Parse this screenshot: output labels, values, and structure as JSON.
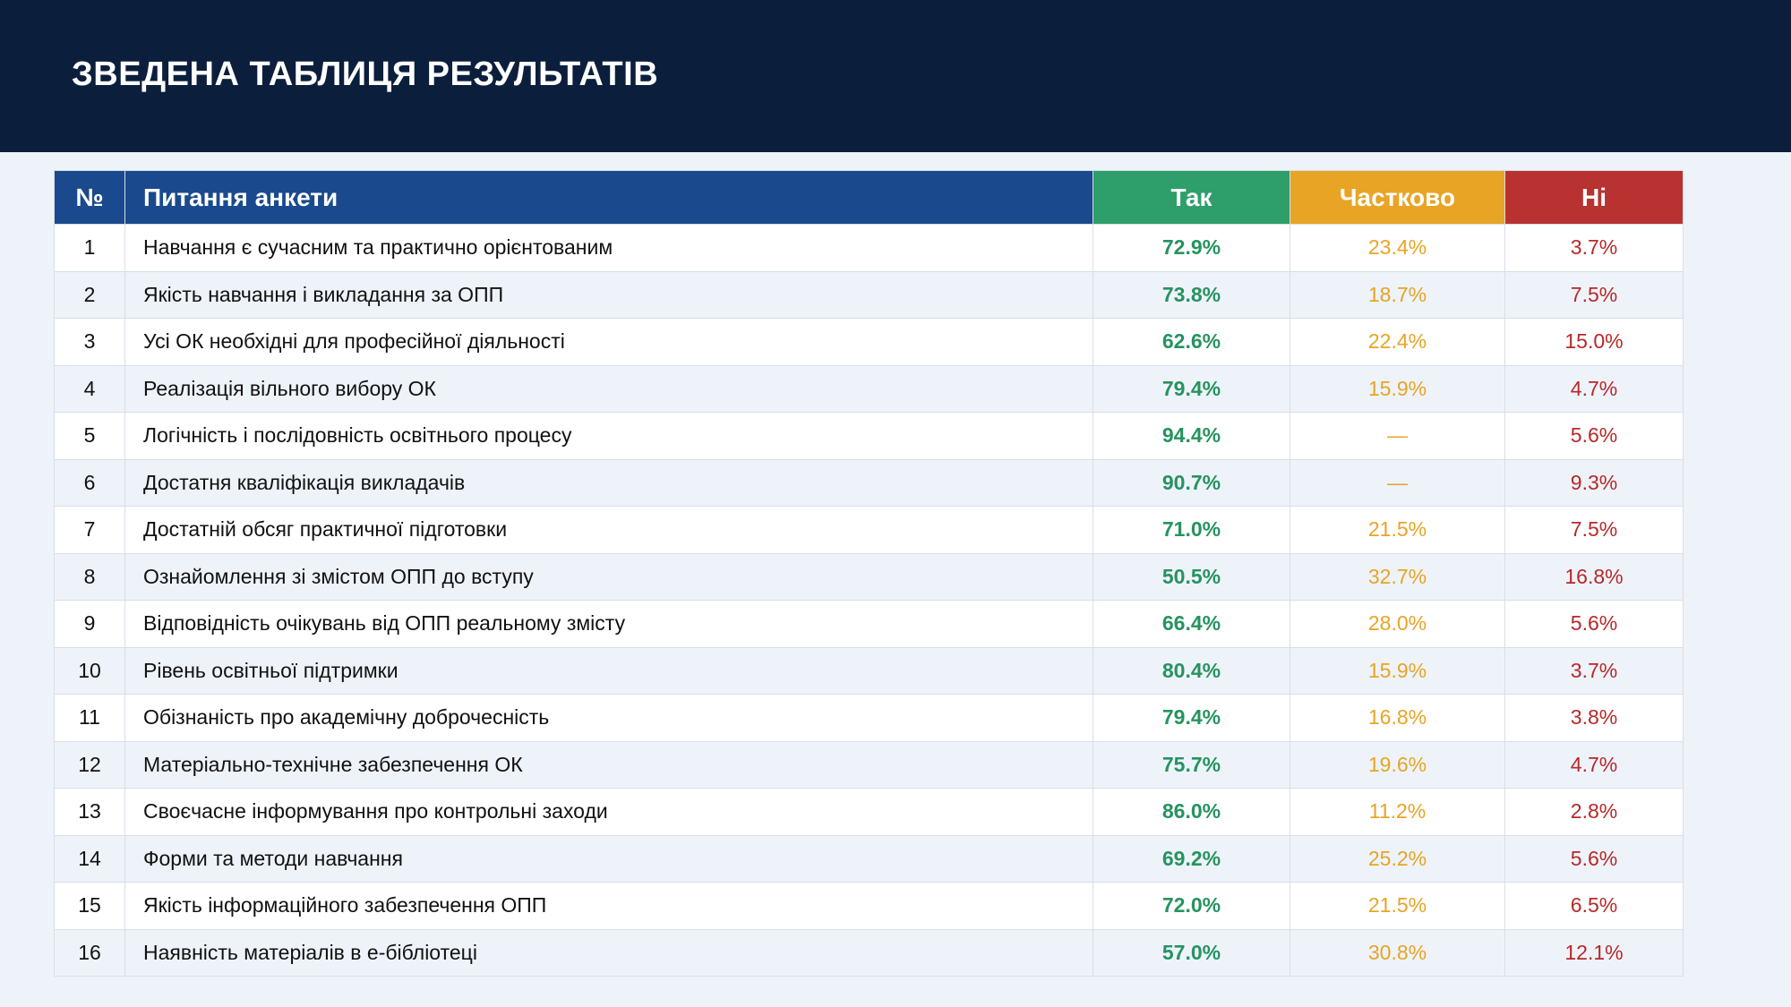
{
  "title": "ЗВЕДЕНА ТАБЛИЦЯ РЕЗУЛЬТАТІВ",
  "columns": {
    "num": "№",
    "question": "Питання анкети",
    "yes": "Так",
    "partial": "Частково",
    "no": "Ні"
  },
  "colors": {
    "header_bg": "#0b1f3d",
    "column_blue": "#1a4a8d",
    "yes": "#2e9e6a",
    "partial": "#e8a424",
    "no": "#b83232"
  },
  "rows": [
    {
      "num": "1",
      "question": "Навчання є сучасним та практично орієнтованим",
      "yes": "72.9%",
      "partial": "23.4%",
      "no": "3.7%"
    },
    {
      "num": "2",
      "question": "Якість навчання і викладання за ОПП",
      "yes": "73.8%",
      "partial": "18.7%",
      "no": "7.5%"
    },
    {
      "num": "3",
      "question": "Усі ОК необхідні для професійної діяльності",
      "yes": "62.6%",
      "partial": "22.4%",
      "no": "15.0%"
    },
    {
      "num": "4",
      "question": "Реалізація вільного вибору ОК",
      "yes": "79.4%",
      "partial": "15.9%",
      "no": "4.7%"
    },
    {
      "num": "5",
      "question": "Логічність і послідовність освітнього процесу",
      "yes": "94.4%",
      "partial": "—",
      "no": "5.6%"
    },
    {
      "num": "6",
      "question": "Достатня кваліфікація викладачів",
      "yes": "90.7%",
      "partial": "—",
      "no": "9.3%"
    },
    {
      "num": "7",
      "question": "Достатній обсяг практичної підготовки",
      "yes": "71.0%",
      "partial": "21.5%",
      "no": "7.5%"
    },
    {
      "num": "8",
      "question": "Ознайомлення зі змістом ОПП до вступу",
      "yes": "50.5%",
      "partial": "32.7%",
      "no": "16.8%"
    },
    {
      "num": "9",
      "question": "Відповідність очікувань від ОПП реальному змісту",
      "yes": "66.4%",
      "partial": "28.0%",
      "no": "5.6%"
    },
    {
      "num": "10",
      "question": "Рівень освітньої підтримки",
      "yes": "80.4%",
      "partial": "15.9%",
      "no": "3.7%"
    },
    {
      "num": "11",
      "question": "Обізнаність про академічну доброчесність",
      "yes": "79.4%",
      "partial": "16.8%",
      "no": "3.8%"
    },
    {
      "num": "12",
      "question": "Матеріально-технічне забезпечення ОК",
      "yes": "75.7%",
      "partial": "19.6%",
      "no": "4.7%"
    },
    {
      "num": "13",
      "question": "Своєчасне інформування про контрольні заходи",
      "yes": "86.0%",
      "partial": "11.2%",
      "no": "2.8%"
    },
    {
      "num": "14",
      "question": "Форми та методи навчання",
      "yes": "69.2%",
      "partial": "25.2%",
      "no": "5.6%"
    },
    {
      "num": "15",
      "question": "Якість інформаційного забезпечення ОПП",
      "yes": "72.0%",
      "partial": "21.5%",
      "no": "6.5%"
    },
    {
      "num": "16",
      "question": "Наявність матеріалів в е-бібліотеці",
      "yes": "57.0%",
      "partial": "30.8%",
      "no": "12.1%"
    }
  ]
}
